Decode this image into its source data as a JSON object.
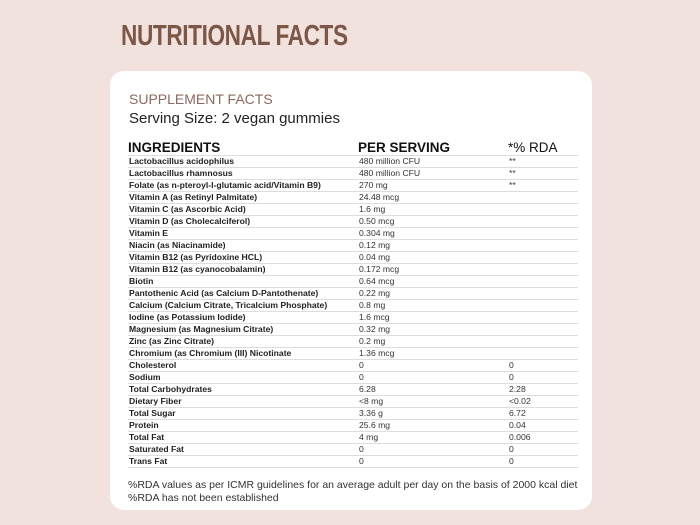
{
  "page_title": "NUTRITIONAL FACTS",
  "card": {
    "heading": "SUPPLEMENT FACTS",
    "serving_size": "Serving Size: 2 vegan gummies",
    "columns": [
      "INGREDIENTS",
      "PER SERVING",
      "*% RDA"
    ],
    "rows": [
      [
        "Lactobacillus acidophilus",
        "480 million CFU",
        "**"
      ],
      [
        "Lactobacillus rhamnosus",
        "480 million CFU",
        "**"
      ],
      [
        "Folate (as n-pteroyl-l-glutamic acid/Vitamin B9)",
        "270 mg",
        "**"
      ],
      [
        "Vitamin A (as Retinyl Palmitate)",
        "24.48 mcg",
        ""
      ],
      [
        "Vitamin C (as Ascorbic Acid)",
        "1.6 mg",
        ""
      ],
      [
        "Vitamin D (as Cholecalciferol)",
        "0.50 mcg",
        ""
      ],
      [
        "Vitamin E",
        "0.304 mg",
        ""
      ],
      [
        "Niacin (as Niacinamide)",
        "0.12 mg",
        ""
      ],
      [
        "Vitamin B12 (as Pyridoxine HCL)",
        "0.04 mg",
        ""
      ],
      [
        "Vitamin B12 (as cyanocobalamin)",
        "0.172 mcg",
        ""
      ],
      [
        "Biotin",
        "0.64 mcg",
        ""
      ],
      [
        "Pantothenic Acid (as Calcium D-Pantothenate)",
        "0.22 mg",
        ""
      ],
      [
        "Calcium (Calcium Citrate, Tricalcium Phosphate)",
        "0.8 mg",
        ""
      ],
      [
        "Iodine (as Potassium Iodide)",
        "1.6 mcg",
        ""
      ],
      [
        "Magnesium (as Magnesium Citrate)",
        "0.32 mg",
        ""
      ],
      [
        "Zinc (as Zinc Citrate)",
        "0.2 mg",
        ""
      ],
      [
        "Chromium (as Chromium (III) Nicotinate",
        "1.36 mcg",
        ""
      ],
      [
        "Cholesterol",
        "0",
        "0"
      ],
      [
        "Sodium",
        "0",
        "0"
      ],
      [
        "Total Carbohydrates",
        "6.28",
        "2.28"
      ],
      [
        "Dietary Fiber",
        "<8 mg",
        "<0.02"
      ],
      [
        "Total Sugar",
        "3.36 g",
        "6.72"
      ],
      [
        "Protein",
        "25.6 mg",
        "0.04"
      ],
      [
        "Total Fat",
        "4 mg",
        "0.006"
      ],
      [
        "Saturated Fat",
        "0",
        "0"
      ],
      [
        "Trans Fat",
        "0",
        "0"
      ]
    ],
    "notes": [
      "%RDA values as per ICMR guidelines for an average adult per day on the basis of 2000 kcal diet",
      "%RDA has not been established"
    ]
  },
  "colors": {
    "background": "#f1e2de",
    "title": "#7c5748",
    "heading": "#8a6a60"
  }
}
